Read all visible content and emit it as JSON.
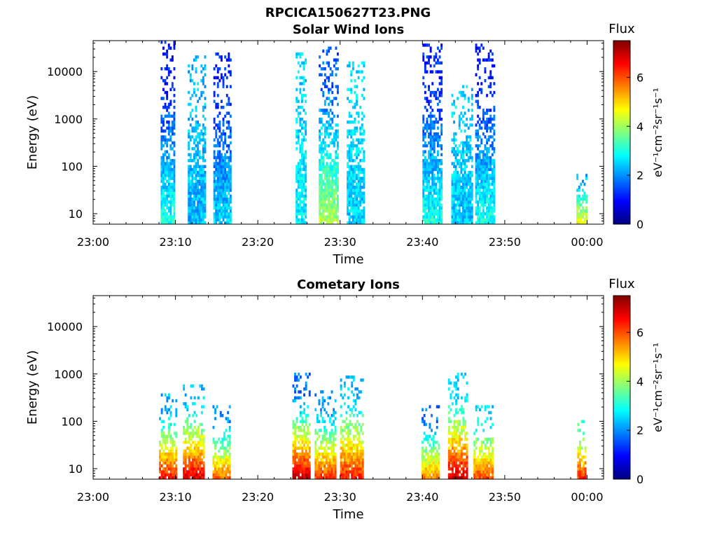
{
  "figure": {
    "title": "RPCICA150627T23.PNG"
  },
  "colormap_stops": [
    "#000080",
    "#0000ff",
    "#00ffff",
    "#ffff00",
    "#ff0000",
    "#800000"
  ],
  "chart_data": [
    {
      "type": "heatmap",
      "title": "Solar Wind Ions",
      "xlabel": "Time",
      "ylabel": "Energy (eV)",
      "yscale": "log",
      "ylim": [
        6,
        45000
      ],
      "xlim": [
        "23:00",
        "00:02"
      ],
      "x_ticks": [
        "23:00",
        "23:10",
        "23:20",
        "23:30",
        "23:40",
        "23:50",
        "00:00"
      ],
      "y_ticks": [
        "10",
        "100",
        "1000",
        "10000"
      ],
      "colorbar": {
        "title": "Flux",
        "label": "eV⁻¹cm⁻²sr⁻¹s⁻¹",
        "range": [
          0,
          7.5
        ],
        "ticks": [
          "0",
          "2",
          "4",
          "6"
        ]
      },
      "bursts": [
        {
          "start_min": 8.2,
          "end_min": 9.9,
          "low_flux": 3.0,
          "high_flux": 1.1,
          "max_energy": 40000
        },
        {
          "start_min": 11.5,
          "end_min": 13.5,
          "low_flux": 2.3,
          "high_flux": 2.3,
          "max_energy": 20000
        },
        {
          "start_min": 14.6,
          "end_min": 16.6,
          "low_flux": 2.5,
          "high_flux": 1.2,
          "max_energy": 25000
        },
        {
          "start_min": 24.6,
          "end_min": 25.8,
          "low_flux": 2.7,
          "high_flux": 2.5,
          "max_energy": 25000
        },
        {
          "start_min": 27.4,
          "end_min": 29.7,
          "low_flux": 4.1,
          "high_flux": 1.6,
          "max_energy": 33000
        },
        {
          "start_min": 30.8,
          "end_min": 32.8,
          "low_flux": 2.5,
          "high_flux": 2.6,
          "max_energy": 15000
        },
        {
          "start_min": 40.0,
          "end_min": 42.2,
          "low_flux": 3.0,
          "high_flux": 1.2,
          "max_energy": 35000
        },
        {
          "start_min": 43.5,
          "end_min": 46.1,
          "low_flux": 2.4,
          "high_flux": 2.5,
          "max_energy": 5000
        },
        {
          "start_min": 46.4,
          "end_min": 48.6,
          "low_flux": 3.0,
          "high_flux": 1.1,
          "max_energy": 38000
        },
        {
          "start_min": 58.7,
          "end_min": 59.9,
          "low_flux": 4.6,
          "high_flux": 2.3,
          "max_energy": 65
        }
      ]
    },
    {
      "type": "heatmap",
      "title": "Cometary Ions",
      "xlabel": "Time",
      "ylabel": "Energy (eV)",
      "yscale": "log",
      "ylim": [
        6,
        45000
      ],
      "xlim": [
        "23:00",
        "00:02"
      ],
      "x_ticks": [
        "23:00",
        "23:10",
        "23:20",
        "23:30",
        "23:40",
        "23:50",
        "00:00"
      ],
      "y_ticks": [
        "10",
        "100",
        "1000",
        "10000"
      ],
      "colorbar": {
        "title": "Flux",
        "label": "eV⁻¹cm⁻²sr⁻¹s⁻¹",
        "range": [
          0,
          7.5
        ],
        "ticks": [
          "0",
          "2",
          "4",
          "6"
        ]
      },
      "bursts": [
        {
          "start_min": 8.0,
          "end_min": 10.2,
          "low_flux": 6.5,
          "high_flux": 2.3,
          "max_energy": 350
        },
        {
          "start_min": 10.9,
          "end_min": 13.5,
          "low_flux": 6.8,
          "high_flux": 2.4,
          "max_energy": 550
        },
        {
          "start_min": 14.5,
          "end_min": 16.7,
          "low_flux": 5.8,
          "high_flux": 2.0,
          "max_energy": 200
        },
        {
          "start_min": 24.2,
          "end_min": 26.2,
          "low_flux": 7.0,
          "high_flux": 1.8,
          "max_energy": 1000
        },
        {
          "start_min": 26.9,
          "end_min": 29.4,
          "low_flux": 6.2,
          "high_flux": 2.1,
          "max_energy": 400
        },
        {
          "start_min": 30.0,
          "end_min": 32.8,
          "low_flux": 6.4,
          "high_flux": 2.4,
          "max_energy": 850
        },
        {
          "start_min": 39.9,
          "end_min": 42.0,
          "low_flux": 5.6,
          "high_flux": 1.8,
          "max_energy": 200
        },
        {
          "start_min": 43.1,
          "end_min": 45.5,
          "low_flux": 6.9,
          "high_flux": 2.5,
          "max_energy": 1000
        },
        {
          "start_min": 46.2,
          "end_min": 48.6,
          "low_flux": 6.0,
          "high_flux": 2.6,
          "max_energy": 200
        },
        {
          "start_min": 58.8,
          "end_min": 59.8,
          "low_flux": 6.3,
          "high_flux": 3.2,
          "max_energy": 100
        }
      ]
    }
  ]
}
